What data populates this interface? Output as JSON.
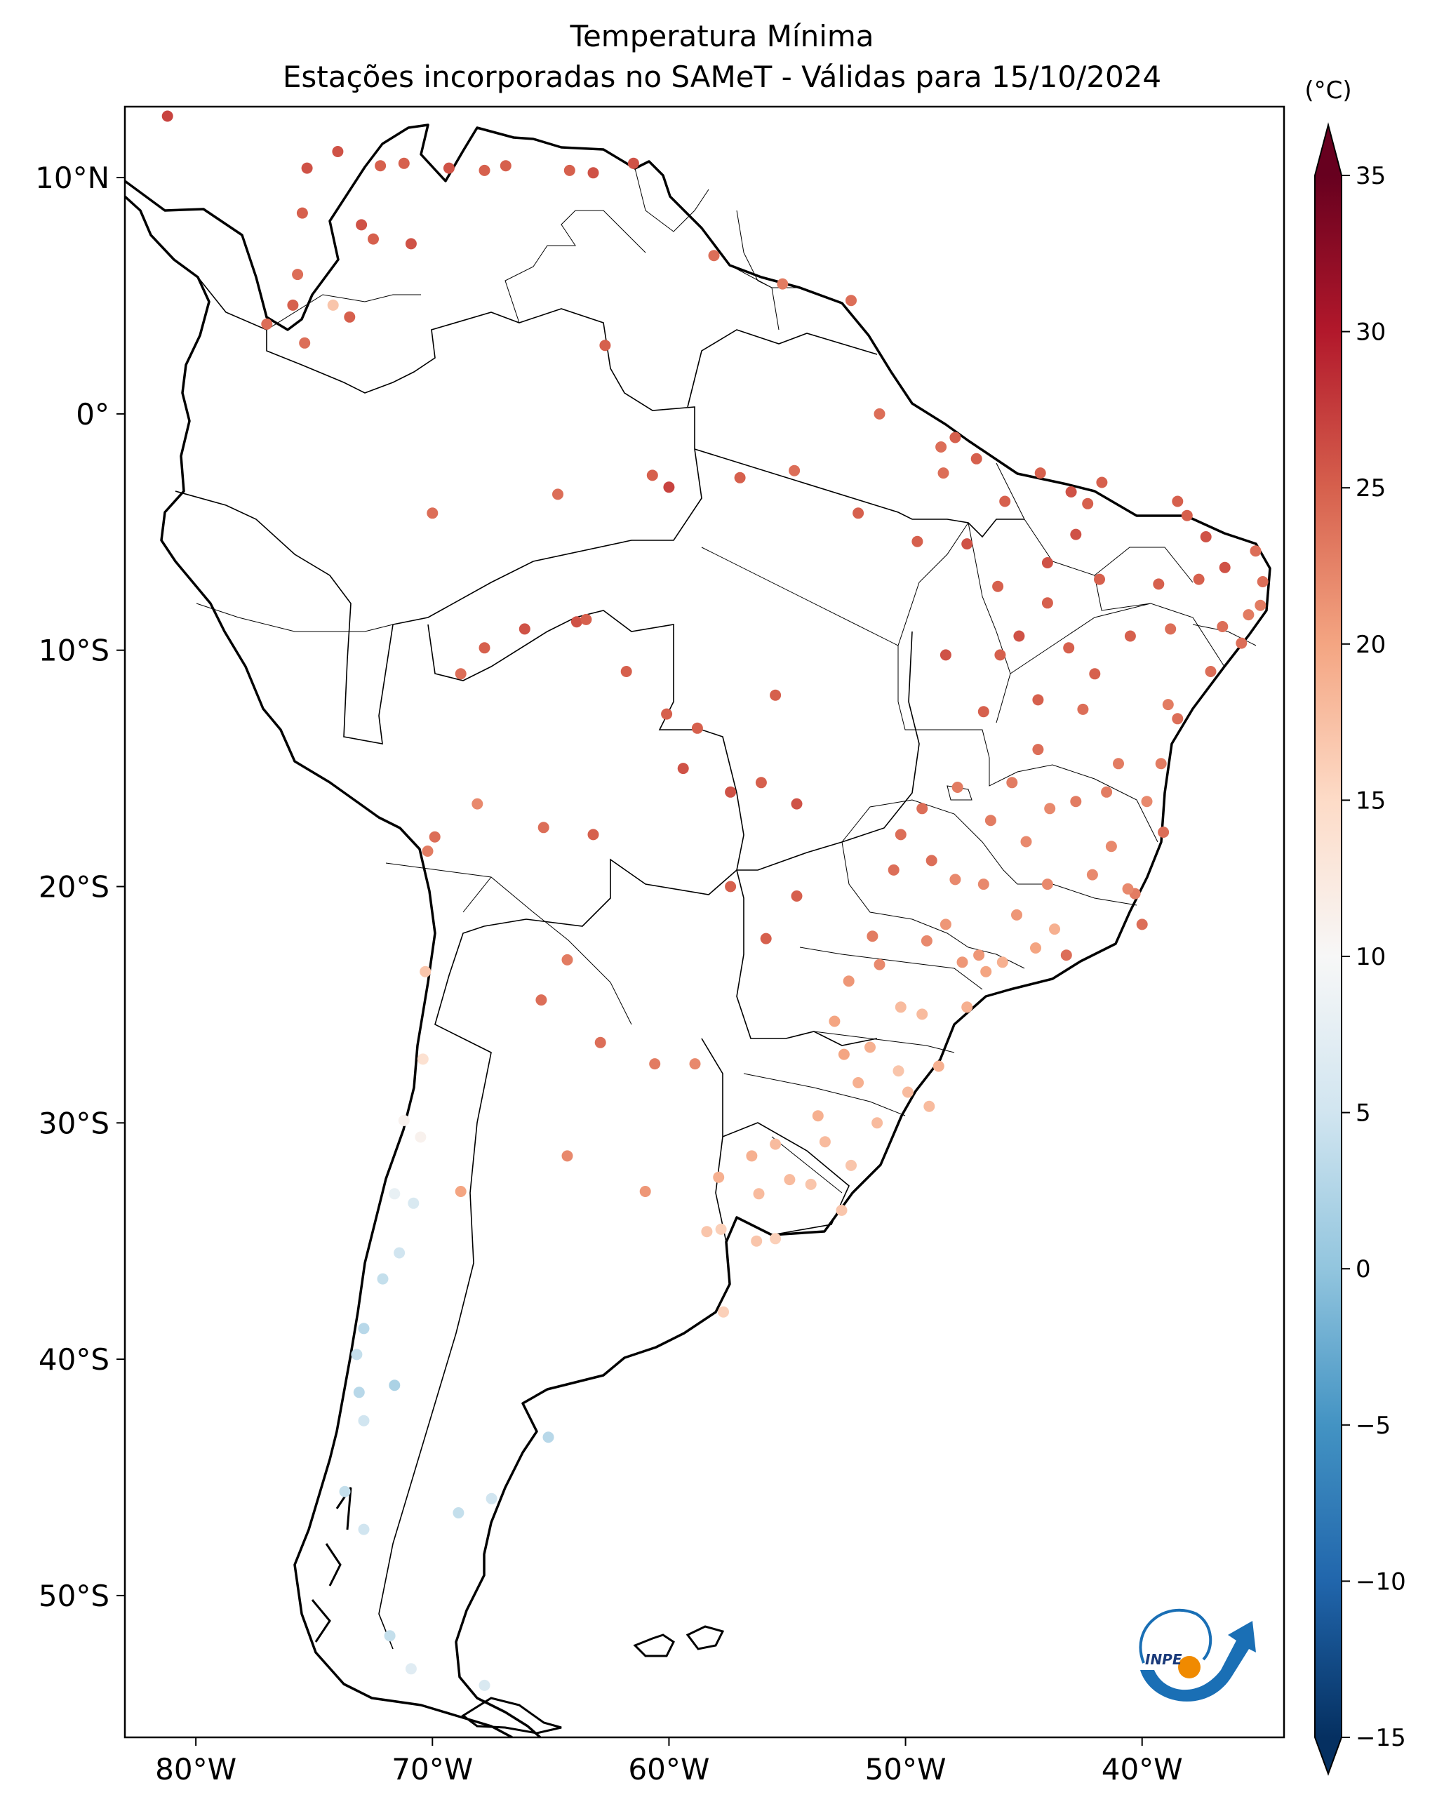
{
  "title": {
    "line1": "Temperatura Mínima",
    "line2": "Estações incorporadas no SAMeT - Válidas para 15/10/2024"
  },
  "map": {
    "projection": "PlateCarree",
    "lon_range": [
      -83,
      -34
    ],
    "lat_range": [
      -56,
      13
    ],
    "lat_ticks": [
      {
        "value": 10,
        "label": "10°N"
      },
      {
        "value": 0,
        "label": "0°"
      },
      {
        "value": -10,
        "label": "10°S"
      },
      {
        "value": -20,
        "label": "20°S"
      },
      {
        "value": -30,
        "label": "30°S"
      },
      {
        "value": -40,
        "label": "40°S"
      },
      {
        "value": -50,
        "label": "50°S"
      }
    ],
    "lon_ticks": [
      {
        "value": -80,
        "label": "80°W"
      },
      {
        "value": -70,
        "label": "70°W"
      },
      {
        "value": -60,
        "label": "60°W"
      },
      {
        "value": -50,
        "label": "50°W"
      },
      {
        "value": -40,
        "label": "40°W"
      }
    ]
  },
  "colorbar": {
    "unit": "(°C)",
    "min": -15,
    "max": 35,
    "ticks": [
      35,
      30,
      25,
      20,
      15,
      10,
      5,
      0,
      -5,
      -10,
      -15
    ],
    "tick_labels": [
      "35",
      "30",
      "25",
      "20",
      "15",
      "10",
      "5",
      "0",
      "−5",
      "−10",
      "−15"
    ],
    "colormap": "RdBu_r",
    "stops": [
      "#053061",
      "#2166ac",
      "#4393c3",
      "#92c5de",
      "#d1e5f0",
      "#f7f7f7",
      "#fddbc7",
      "#f4a582",
      "#d6604d",
      "#b2182b",
      "#67001f"
    ]
  },
  "logo": {
    "text": "INPE",
    "colors": {
      "arc": "#1a6fb5",
      "dot": "#f08a00"
    }
  },
  "stations": [
    [
      -81.2,
      12.6,
      27
    ],
    [
      -75.3,
      10.4,
      26
    ],
    [
      -74.0,
      11.1,
      26
    ],
    [
      -72.2,
      10.5,
      25
    ],
    [
      -71.2,
      10.6,
      25
    ],
    [
      -69.3,
      10.4,
      26
    ],
    [
      -67.8,
      10.3,
      25
    ],
    [
      -66.9,
      10.5,
      25
    ],
    [
      -64.2,
      10.3,
      25
    ],
    [
      -63.2,
      10.2,
      26
    ],
    [
      -61.5,
      10.6,
      26
    ],
    [
      -73.0,
      8.0,
      26
    ],
    [
      -72.5,
      7.4,
      25
    ],
    [
      -75.5,
      8.5,
      25
    ],
    [
      -70.9,
      7.2,
      26
    ],
    [
      -75.9,
      4.6,
      25
    ],
    [
      -75.7,
      5.9,
      24
    ],
    [
      -74.2,
      4.6,
      17
    ],
    [
      -75.4,
      3.0,
      24
    ],
    [
      -77.0,
      3.8,
      24
    ],
    [
      -73.5,
      4.1,
      25
    ],
    [
      -62.7,
      2.9,
      25
    ],
    [
      -58.1,
      6.7,
      24
    ],
    [
      -55.2,
      5.5,
      23
    ],
    [
      -52.3,
      4.8,
      24
    ],
    [
      -51.1,
      0.0,
      24
    ],
    [
      -48.5,
      -1.4,
      24
    ],
    [
      -47.9,
      -1.0,
      25
    ],
    [
      -48.4,
      -2.5,
      24
    ],
    [
      -47.0,
      -1.9,
      25
    ],
    [
      -44.3,
      -2.5,
      25
    ],
    [
      -43.0,
      -3.3,
      26
    ],
    [
      -41.7,
      -2.9,
      25
    ],
    [
      -38.5,
      -3.7,
      25
    ],
    [
      -38.1,
      -4.3,
      25
    ],
    [
      -37.3,
      -5.2,
      26
    ],
    [
      -35.2,
      -5.8,
      24
    ],
    [
      -36.5,
      -6.5,
      26
    ],
    [
      -34.9,
      -7.1,
      24
    ],
    [
      -35.5,
      -8.5,
      23
    ],
    [
      -35.0,
      -8.1,
      23
    ],
    [
      -36.6,
      -9.0,
      24
    ],
    [
      -35.8,
      -9.7,
      24
    ],
    [
      -37.1,
      -10.9,
      24
    ],
    [
      -38.5,
      -12.9,
      24
    ],
    [
      -39.2,
      -14.8,
      23
    ],
    [
      -39.1,
      -17.7,
      24
    ],
    [
      -40.3,
      -20.3,
      23
    ],
    [
      -40.0,
      -21.6,
      24
    ],
    [
      -43.2,
      -22.9,
      24
    ],
    [
      -46.6,
      -23.6,
      20
    ],
    [
      -48.6,
      -27.6,
      19
    ],
    [
      -51.2,
      -30.0,
      18
    ],
    [
      -52.3,
      -31.8,
      17
    ],
    [
      -60.0,
      -3.1,
      27
    ],
    [
      -63.9,
      -8.8,
      26
    ],
    [
      -67.8,
      -9.9,
      25
    ],
    [
      -70.0,
      -4.2,
      24
    ],
    [
      -64.7,
      -3.4,
      24
    ],
    [
      -60.7,
      -2.6,
      25
    ],
    [
      -57.0,
      -2.7,
      25
    ],
    [
      -54.7,
      -2.4,
      24
    ],
    [
      -52.0,
      -4.2,
      25
    ],
    [
      -49.5,
      -5.4,
      25
    ],
    [
      -56.1,
      -15.6,
      25
    ],
    [
      -54.6,
      -16.5,
      26
    ],
    [
      -57.4,
      -20.0,
      25
    ],
    [
      -54.6,
      -20.4,
      25
    ],
    [
      -55.9,
      -22.2,
      25
    ],
    [
      -57.4,
      -16.0,
      26
    ],
    [
      -55.5,
      -11.9,
      25
    ],
    [
      -58.8,
      -13.3,
      25
    ],
    [
      -60.1,
      -12.7,
      25
    ],
    [
      -59.4,
      -15.0,
      26
    ],
    [
      -61.8,
      -10.9,
      25
    ],
    [
      -63.5,
      -8.7,
      25
    ],
    [
      -66.1,
      -9.1,
      26
    ],
    [
      -68.8,
      -11.0,
      24
    ],
    [
      -68.1,
      -16.5,
      22
    ],
    [
      -65.3,
      -17.5,
      24
    ],
    [
      -63.2,
      -17.8,
      25
    ],
    [
      -70.2,
      -18.5,
      23
    ],
    [
      -69.9,
      -17.9,
      24
    ],
    [
      -70.3,
      -23.6,
      17
    ],
    [
      -70.4,
      -27.3,
      14
    ],
    [
      -70.5,
      -30.6,
      11
    ],
    [
      -71.2,
      -29.9,
      11
    ],
    [
      -71.6,
      -33.0,
      8
    ],
    [
      -70.8,
      -33.4,
      6
    ],
    [
      -71.4,
      -35.5,
      5
    ],
    [
      -72.1,
      -36.6,
      4
    ],
    [
      -72.9,
      -38.7,
      3
    ],
    [
      -73.2,
      -39.8,
      4
    ],
    [
      -73.1,
      -41.4,
      3
    ],
    [
      -72.9,
      -42.6,
      5
    ],
    [
      -73.7,
      -45.6,
      4
    ],
    [
      -71.6,
      -41.1,
      2
    ],
    [
      -68.8,
      -32.9,
      20
    ],
    [
      -65.4,
      -24.8,
      24
    ],
    [
      -64.3,
      -23.1,
      23
    ],
    [
      -62.9,
      -26.6,
      24
    ],
    [
      -60.6,
      -27.5,
      23
    ],
    [
      -58.9,
      -27.5,
      22
    ],
    [
      -58.4,
      -34.6,
      17
    ],
    [
      -57.7,
      -38.0,
      16
    ],
    [
      -65.1,
      -43.3,
      3
    ],
    [
      -67.5,
      -45.9,
      5
    ],
    [
      -68.9,
      -46.5,
      4
    ],
    [
      -70.9,
      -53.1,
      7
    ],
    [
      -72.9,
      -47.2,
      5
    ],
    [
      -71.8,
      -51.7,
      4
    ],
    [
      -67.8,
      -53.8,
      6
    ],
    [
      -64.3,
      -31.4,
      22
    ],
    [
      -61.0,
      -32.9,
      21
    ],
    [
      -46.0,
      -10.2,
      25
    ],
    [
      -45.2,
      -9.4,
      26
    ],
    [
      -44.0,
      -8.0,
      25
    ],
    [
      -42.8,
      -5.1,
      26
    ],
    [
      -41.8,
      -7.0,
      25
    ],
    [
      -40.5,
      -9.4,
      25
    ],
    [
      -38.9,
      -12.3,
      23
    ],
    [
      -41.0,
      -14.8,
      23
    ],
    [
      -42.5,
      -12.5,
      24
    ],
    [
      -44.4,
      -12.1,
      25
    ],
    [
      -46.7,
      -12.6,
      25
    ],
    [
      -48.3,
      -10.2,
      26
    ],
    [
      -47.8,
      -15.8,
      23
    ],
    [
      -49.3,
      -16.7,
      24
    ],
    [
      -50.2,
      -17.8,
      24
    ],
    [
      -48.9,
      -18.9,
      24
    ],
    [
      -47.9,
      -19.7,
      22
    ],
    [
      -44.0,
      -19.9,
      22
    ],
    [
      -45.3,
      -21.2,
      21
    ],
    [
      -46.9,
      -22.9,
      21
    ],
    [
      -47.6,
      -23.2,
      21
    ],
    [
      -49.1,
      -22.3,
      22
    ],
    [
      -51.4,
      -22.1,
      23
    ],
    [
      -53.0,
      -25.7,
      20
    ],
    [
      -49.3,
      -25.4,
      18
    ],
    [
      -50.2,
      -25.1,
      18
    ],
    [
      -51.5,
      -26.8,
      19
    ],
    [
      -52.6,
      -27.1,
      20
    ],
    [
      -50.3,
      -27.8,
      17
    ],
    [
      -53.7,
      -29.7,
      19
    ],
    [
      -55.5,
      -30.9,
      18
    ],
    [
      -54.9,
      -32.4,
      18
    ],
    [
      -56.5,
      -31.4,
      19
    ],
    [
      -55.5,
      -34.9,
      16
    ],
    [
      -56.2,
      -33.0,
      18
    ],
    [
      -57.9,
      -32.3,
      19
    ],
    [
      -45.9,
      -23.2,
      19
    ],
    [
      -44.5,
      -22.6,
      20
    ],
    [
      -43.7,
      -21.8,
      19
    ],
    [
      -42.1,
      -19.5,
      22
    ],
    [
      -41.3,
      -18.3,
      22
    ],
    [
      -40.6,
      -20.1,
      22
    ],
    [
      -42.8,
      -16.4,
      23
    ],
    [
      -43.9,
      -16.7,
      22
    ],
    [
      -45.5,
      -15.6,
      23
    ],
    [
      -46.4,
      -17.2,
      23
    ],
    [
      -44.9,
      -18.1,
      22
    ],
    [
      -41.5,
      -16.0,
      23
    ],
    [
      -39.8,
      -16.4,
      22
    ],
    [
      -44.4,
      -14.2,
      24
    ],
    [
      -42.0,
      -11.0,
      25
    ],
    [
      -38.8,
      -9.1,
      24
    ],
    [
      -37.6,
      -7.0,
      25
    ],
    [
      -39.3,
      -7.2,
      25
    ],
    [
      -42.3,
      -3.8,
      25
    ],
    [
      -45.8,
      -3.7,
      25
    ],
    [
      -47.4,
      -5.5,
      26
    ],
    [
      -46.1,
      -7.3,
      25
    ],
    [
      -44.0,
      -6.3,
      26
    ],
    [
      -43.1,
      -9.9,
      25
    ],
    [
      -46.7,
      -19.9,
      22
    ],
    [
      -48.3,
      -21.6,
      21
    ],
    [
      -50.5,
      -19.3,
      24
    ],
    [
      -51.1,
      -23.3,
      22
    ],
    [
      -52.4,
      -24.0,
      21
    ],
    [
      -47.4,
      -25.1,
      19
    ],
    [
      -49.9,
      -28.7,
      18
    ],
    [
      -52.0,
      -28.3,
      19
    ],
    [
      -49.0,
      -29.3,
      18
    ],
    [
      -53.4,
      -30.8,
      18
    ],
    [
      -54.0,
      -32.6,
      17
    ],
    [
      -52.7,
      -33.7,
      17
    ],
    [
      -57.8,
      -34.5,
      16
    ],
    [
      -56.3,
      -35.0,
      17
    ]
  ]
}
